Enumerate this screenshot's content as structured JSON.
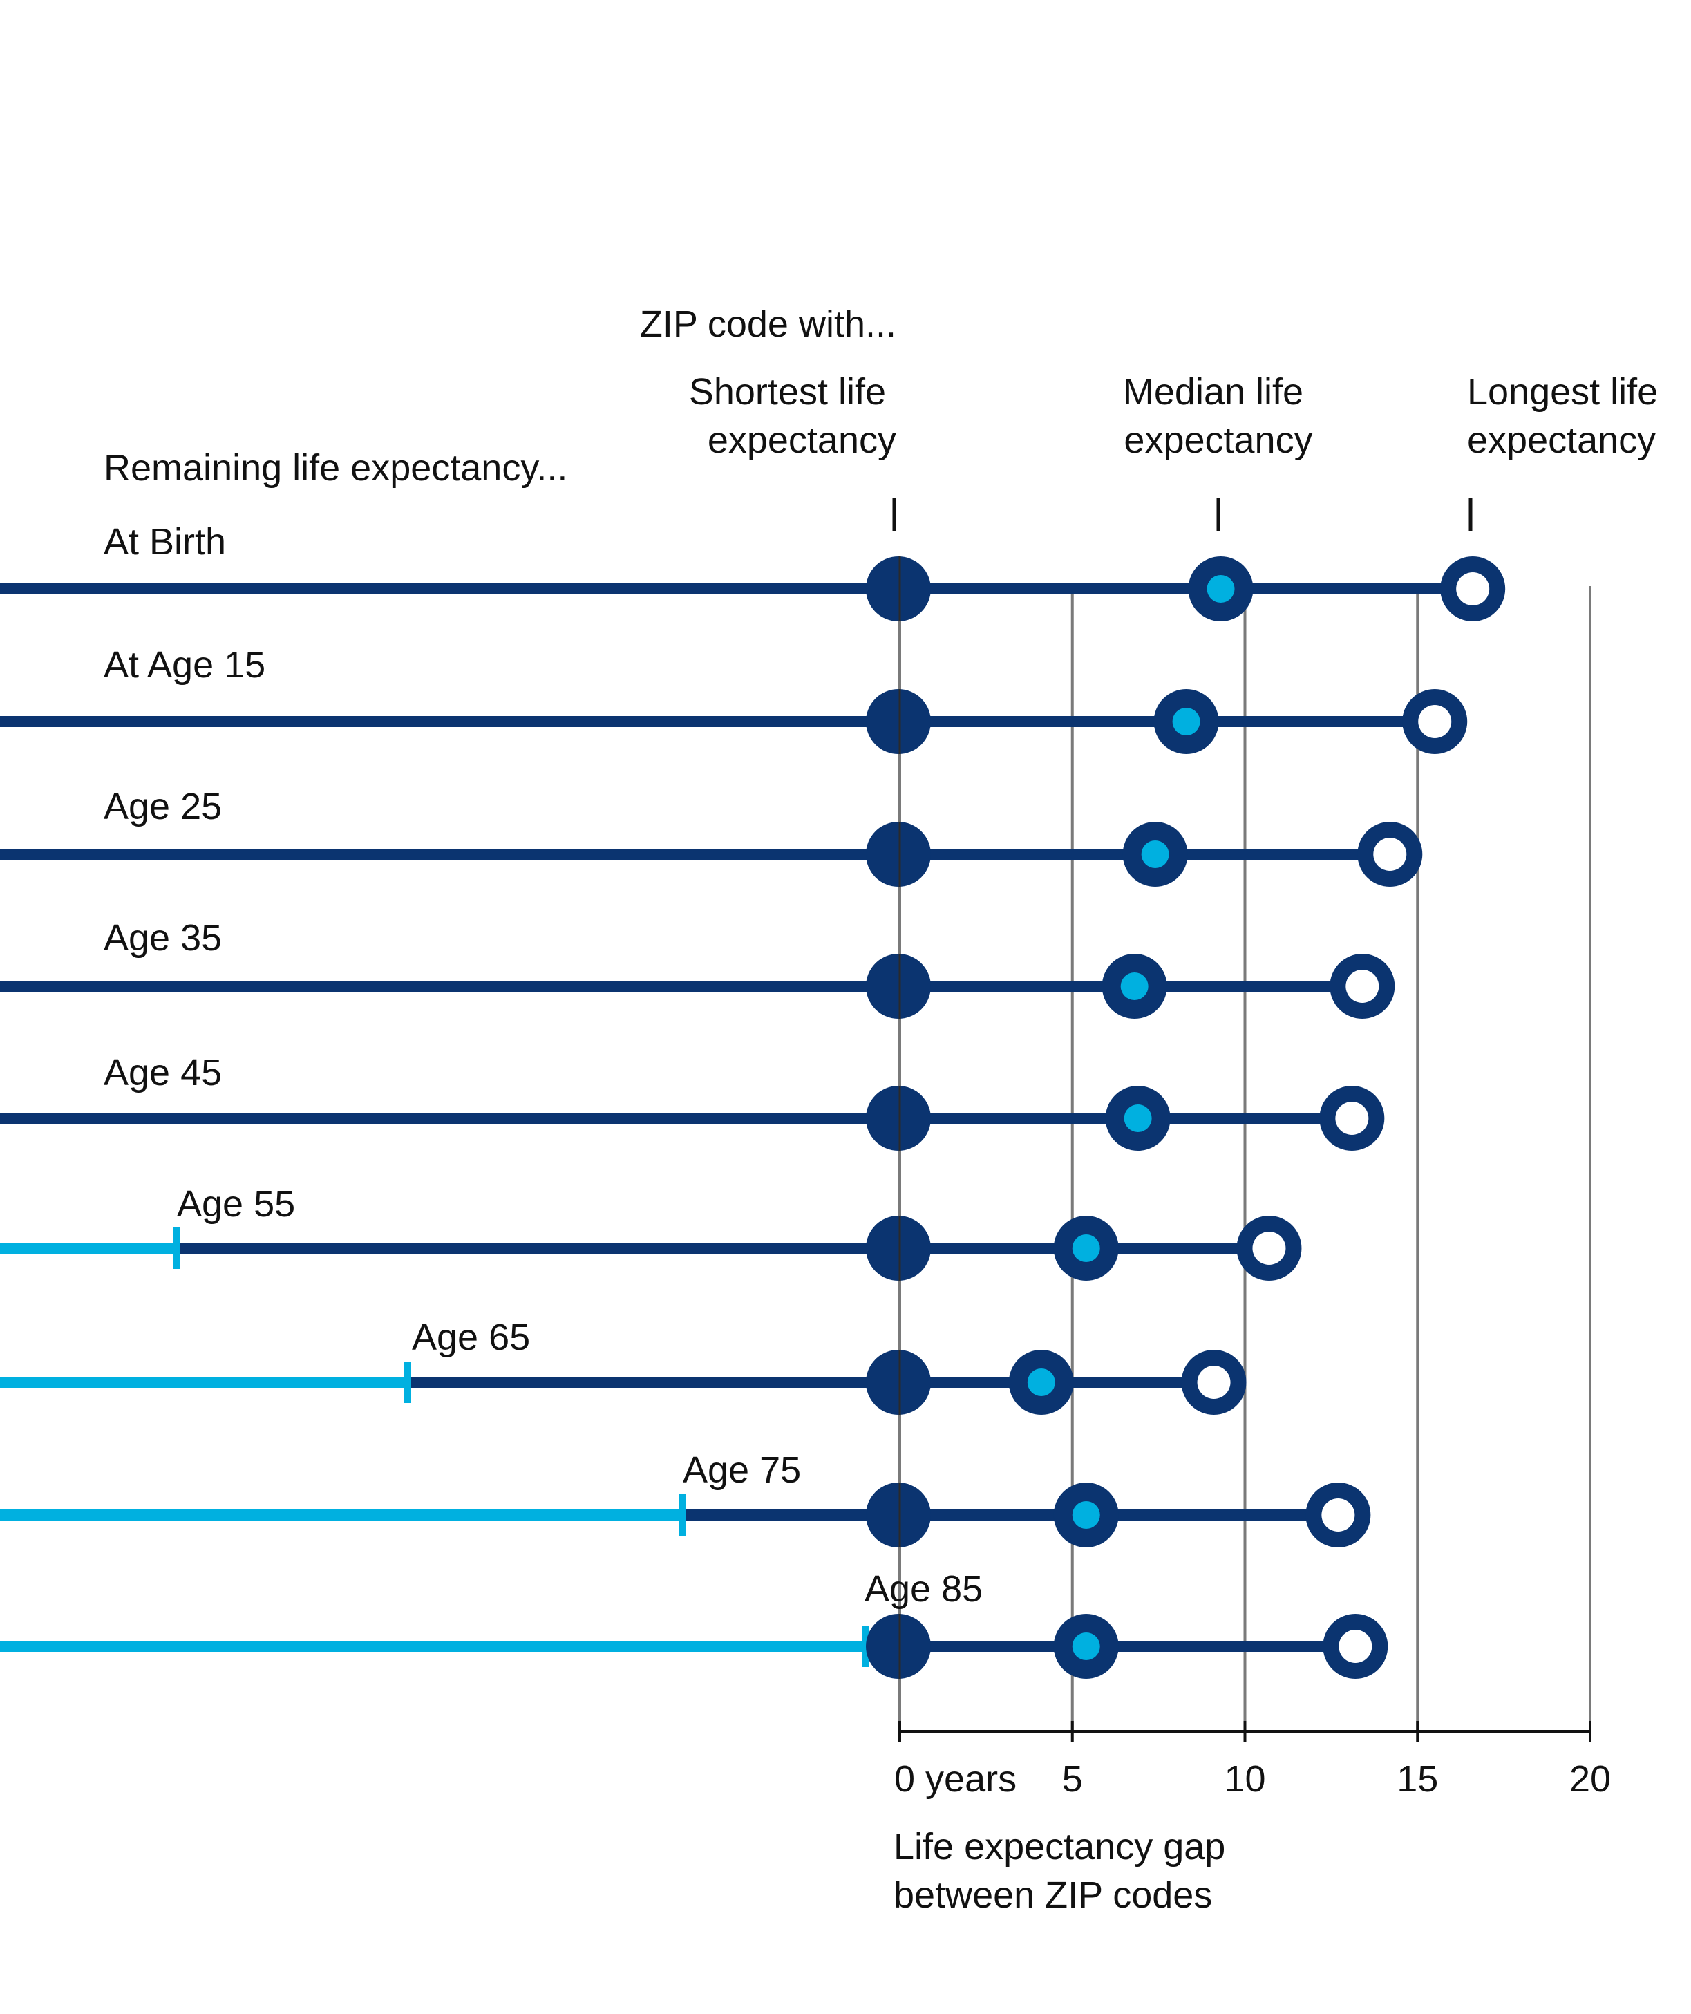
{
  "chart_data": {
    "type": "dumbbell",
    "header_label": "ZIP code with...",
    "row_header": "Remaining life expectancy...",
    "series": [
      {
        "name": "Shortest life expectancy",
        "name_lines": [
          "Shortest life",
          "expectancy"
        ],
        "marker": "filled-dark"
      },
      {
        "name": "Median life expectancy",
        "name_lines": [
          "Median life",
          "expectancy"
        ],
        "marker": "ring-light-center"
      },
      {
        "name": "Longest life expectancy",
        "name_lines": [
          "Longest life",
          "expectancy"
        ],
        "marker": "ring-white-center"
      }
    ],
    "rows": [
      {
        "label": "At Birth",
        "shortest": 0,
        "median": 9.3,
        "longest": 16.6
      },
      {
        "label": "At Age 15",
        "shortest": 0,
        "median": 8.3,
        "longest": 15.5
      },
      {
        "label": "Age 25",
        "shortest": 0,
        "median": 7.4,
        "longest": 14.2
      },
      {
        "label": "Age 35",
        "shortest": 0,
        "median": 6.8,
        "longest": 13.4
      },
      {
        "label": "Age 45",
        "shortest": 0,
        "median": 6.9,
        "longest": 13.1
      },
      {
        "label": "Age 55",
        "shortest": 0,
        "median": 5.4,
        "longest": 10.7
      },
      {
        "label": "Age 65",
        "shortest": 0,
        "median": 4.1,
        "longest": 9.1
      },
      {
        "label": "Age 75",
        "shortest": 0,
        "median": 5.4,
        "longest": 12.7
      },
      {
        "label": "Age 85",
        "shortest": 0,
        "median": 5.4,
        "longest": 13.2
      }
    ],
    "x_axis": {
      "ticks": [
        0,
        5,
        10,
        15,
        20
      ],
      "tick_labels": [
        "0 years",
        "5",
        "10",
        "15",
        "20"
      ],
      "xlim": [
        0,
        20
      ],
      "label_lines": [
        "Life expectancy gap",
        "between ZIP codes"
      ],
      "gridlines": true
    },
    "colors": {
      "dark_navy": "#0b3470",
      "light_blue": "#00b0e0",
      "gridline": "#7a7a7a",
      "axis": "#111111",
      "text": "#111111"
    }
  }
}
